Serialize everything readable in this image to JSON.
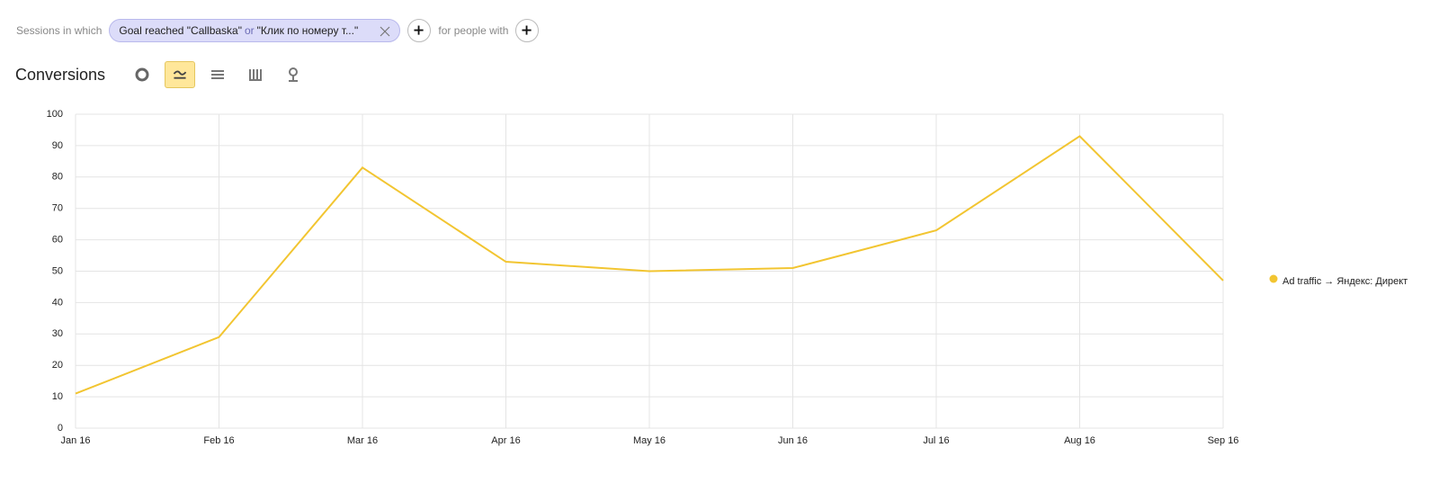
{
  "filter": {
    "prefix": "Sessions in which",
    "goal_1": "Goal reached \"Callbaska\"",
    "connector": "or",
    "goal_2": "\"Клик по номеру т...\"",
    "suffix": "for people with"
  },
  "report": {
    "title": "Conversions"
  },
  "chart_data": {
    "type": "line",
    "categories": [
      "Jan 16",
      "Feb 16",
      "Mar 16",
      "Apr 16",
      "May 16",
      "Jun 16",
      "Jul 16",
      "Aug 16",
      "Sep 16"
    ],
    "series": [
      {
        "name": "Ad traffic → Яндекс: Директ",
        "color": "#f2c531",
        "values": [
          11,
          29,
          83,
          53,
          50,
          51,
          63,
          93,
          47
        ]
      }
    ],
    "ylim": [
      0,
      100
    ],
    "yticks": [
      0,
      10,
      20,
      30,
      40,
      50,
      60,
      70,
      80,
      90,
      100
    ],
    "grid": true,
    "legend": "right"
  }
}
